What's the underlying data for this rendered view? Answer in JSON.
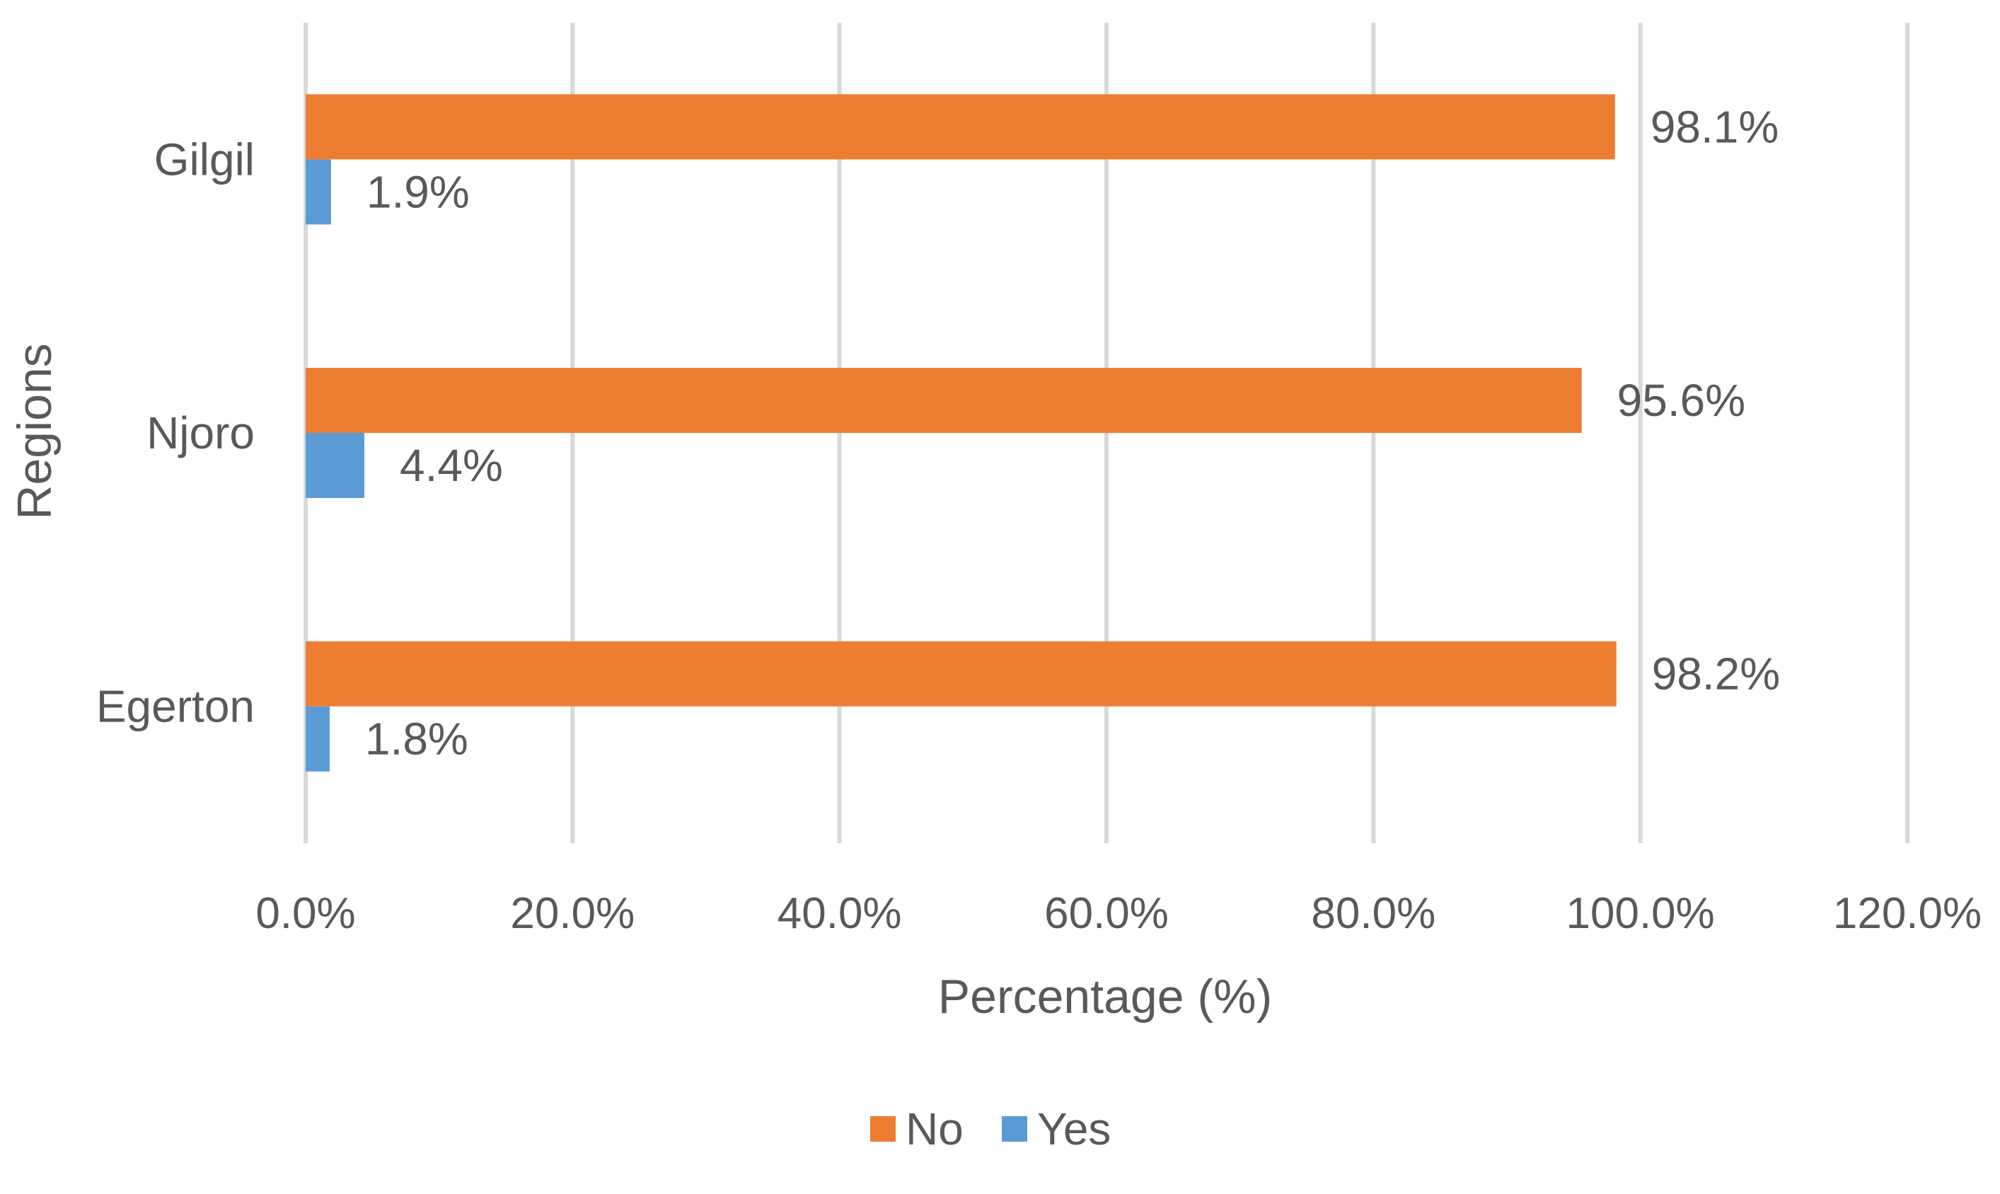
{
  "chart_data": {
    "type": "bar",
    "orientation": "horizontal",
    "categories": [
      "Gilgil",
      "Njoro",
      "Egerton"
    ],
    "series": [
      {
        "name": "No",
        "values": [
          98.1,
          95.6,
          98.2
        ],
        "labels": [
          "98.1%",
          "95.6%",
          "98.2%"
        ],
        "color": "#ed7d31"
      },
      {
        "name": "Yes",
        "values": [
          1.9,
          4.4,
          1.8
        ],
        "labels": [
          "1.9%",
          "4.4%",
          "1.8%"
        ],
        "color": "#5b9bd5"
      }
    ],
    "xlabel": "Percentage (%)",
    "ylabel": "Regions",
    "xlim": [
      0,
      120
    ],
    "xticks": [
      0,
      20,
      40,
      60,
      80,
      100,
      120
    ],
    "xtick_labels": [
      "0.0%",
      "20.0%",
      "40.0%",
      "60.0%",
      "80.0%",
      "100.0%",
      "120.0%"
    ],
    "grid": "vertical",
    "legend": "bottom"
  }
}
